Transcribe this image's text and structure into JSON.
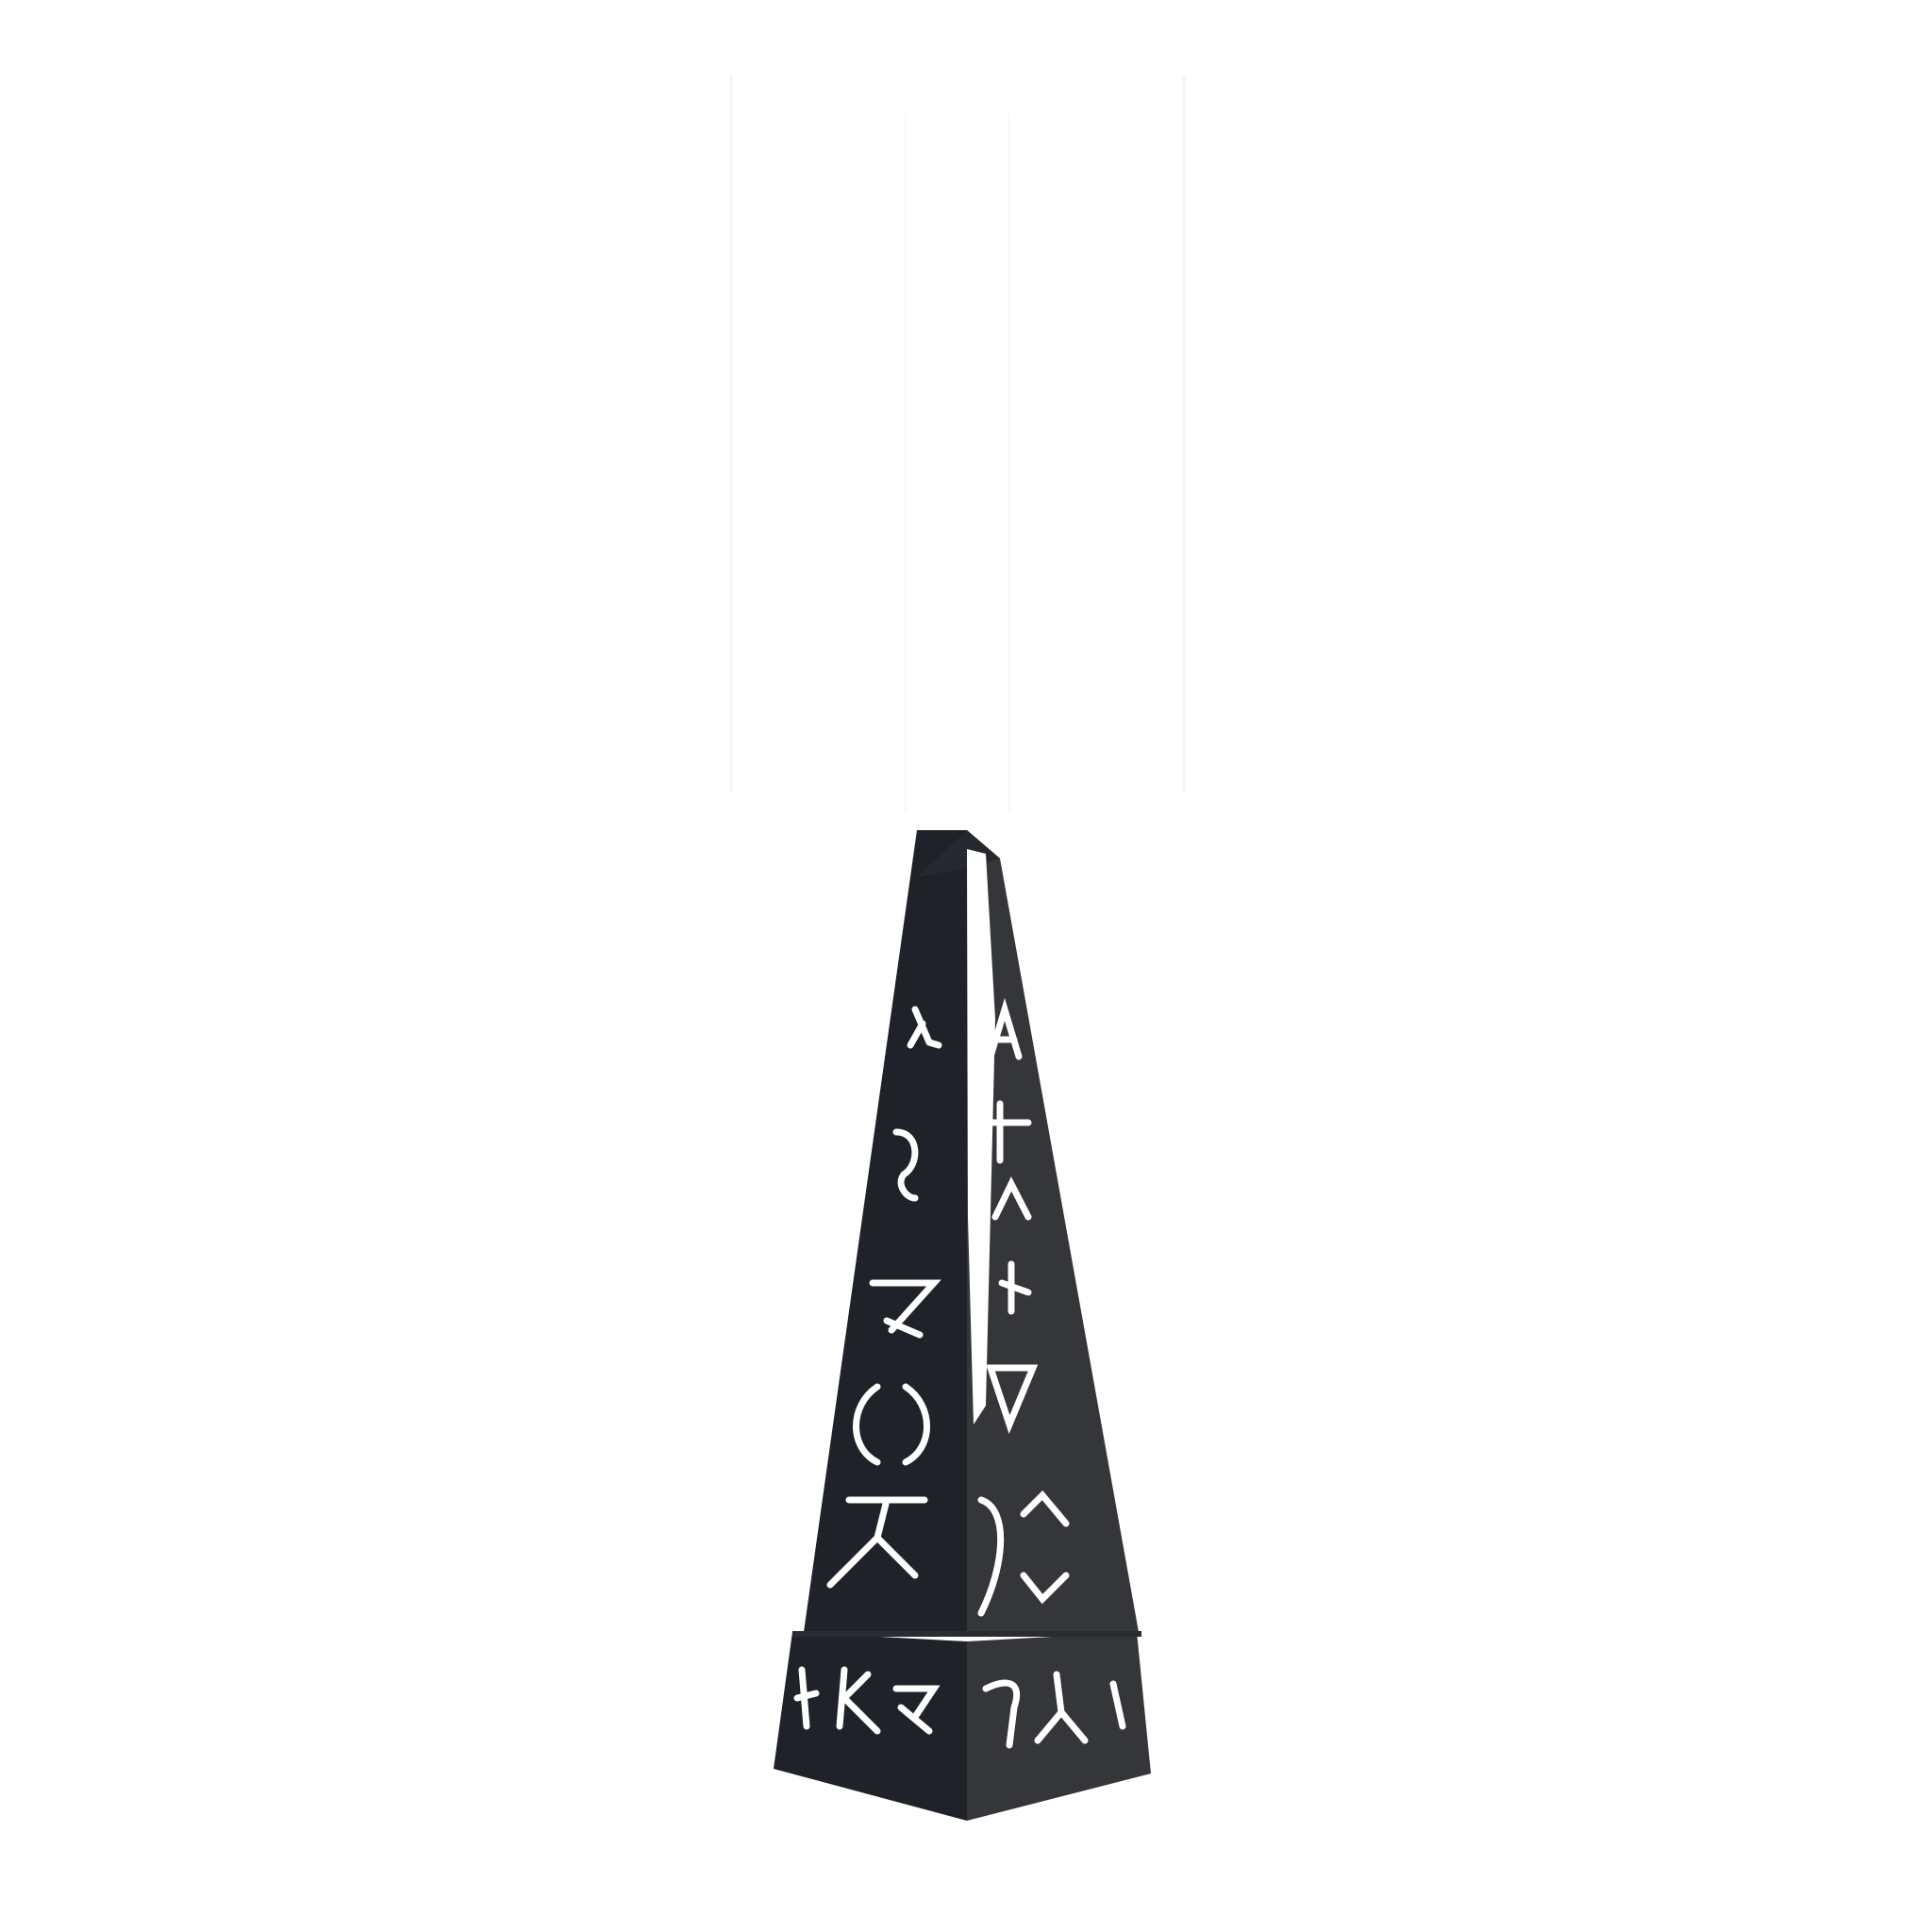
{
  "scene": {
    "background_color": "#ffffff",
    "object": "obelisk",
    "colors": {
      "left_face": "#1f2229",
      "right_face": "#35363a",
      "edge_highlight": "#ffffff",
      "glyph": "#ffffff",
      "beam": "#f2f2f2"
    },
    "glyph_icons": [
      "rune-lambda-icon",
      "rune-hook-icon",
      "rune-seven-icon",
      "rune-ring-icon",
      "rune-figure-icon",
      "rune-a-icon",
      "rune-cross-icon",
      "rune-caret-icon",
      "rune-triangle-icon",
      "rune-bracket-icon",
      "rune-base-left-icon",
      "rune-base-right-icon"
    ]
  }
}
